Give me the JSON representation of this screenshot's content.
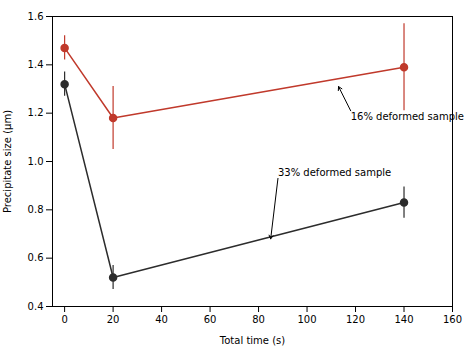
{
  "chart_data": {
    "type": "line",
    "xlabel": "Total time (s)",
    "ylabel": "Precipitate size (μm)",
    "xlim": [
      -5,
      160
    ],
    "ylim": [
      0.4,
      1.6
    ],
    "xticks": [
      0,
      20,
      40,
      60,
      80,
      100,
      120,
      140,
      160
    ],
    "yticks": [
      0.4,
      0.6,
      0.8,
      {
        "value": 1.0,
        "label": "1.0"
      },
      1.2,
      1.4,
      1.6
    ],
    "grid": false,
    "marker": "circle",
    "series": [
      {
        "color": "#c0392b",
        "x": [
          0,
          20,
          140
        ],
        "values": [
          1.47,
          1.18,
          1.39
        ],
        "yerr": [
          0.05,
          0.13,
          0.18
        ]
      },
      {
        "color": "#2c2c2c",
        "x": [
          0,
          20,
          140
        ],
        "values": [
          1.32,
          0.52,
          0.83
        ],
        "yerr": [
          0.05,
          0.05,
          0.065
        ]
      }
    ],
    "annotations": [
      {
        "text": "16% deformed sample",
        "xy": [
          113,
          1.31
        ],
        "xytext": [
          118,
          1.21
        ]
      },
      {
        "text": "33% deformed sample",
        "xy": [
          85,
          0.68
        ],
        "xytext": [
          88,
          0.93
        ]
      }
    ]
  }
}
